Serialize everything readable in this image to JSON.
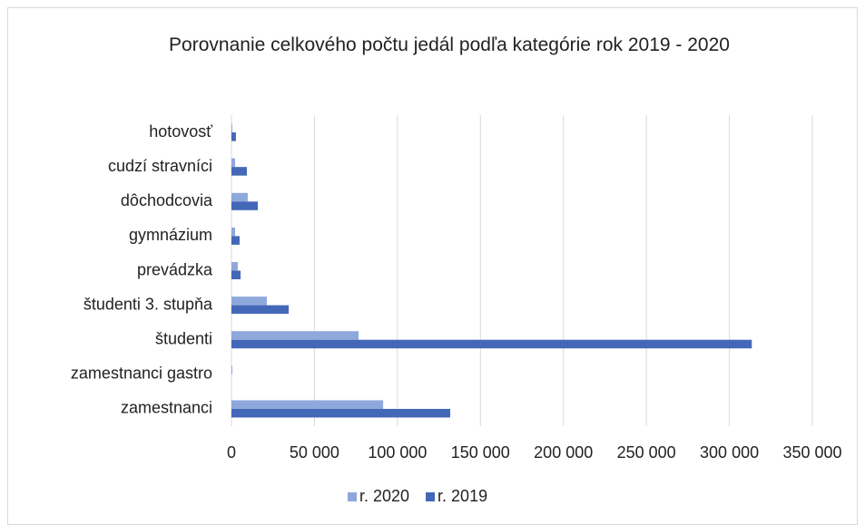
{
  "chart_data": {
    "type": "hbar",
    "title": "Porovnanie celkového počtu jedál podľa kategórie rok 2019 - 2020",
    "categories": [
      "zamestnanci",
      "zamestnanci gastro",
      "študenti",
      "študenti 3. stupňa",
      "prevádzka",
      "gymnázium",
      "dôchodcovia",
      "cudzí stravníci",
      "hotovosť"
    ],
    "series": [
      {
        "name": "r. 2020",
        "color": "#8fa8dc",
        "values": [
          91400,
          500,
          76600,
          21300,
          3800,
          2200,
          9800,
          2200,
          500
        ]
      },
      {
        "name": "r. 2019",
        "color": "#4468b8",
        "values": [
          131800,
          0,
          313500,
          34500,
          5500,
          4900,
          15900,
          9300,
          2700
        ]
      }
    ],
    "xlim": [
      0,
      350000
    ],
    "xticks": [
      0,
      {
        "value": 50000,
        "label": "50 000"
      },
      {
        "value": 100000,
        "label": "100 000"
      },
      {
        "value": 150000,
        "label": "150 000"
      },
      {
        "value": 200000,
        "label": "200 000"
      },
      {
        "value": 250000,
        "label": "250 000"
      },
      {
        "value": 300000,
        "label": "300 000"
      },
      {
        "value": 350000,
        "label": "350 000"
      }
    ],
    "grid": true,
    "legend": "bottom"
  }
}
